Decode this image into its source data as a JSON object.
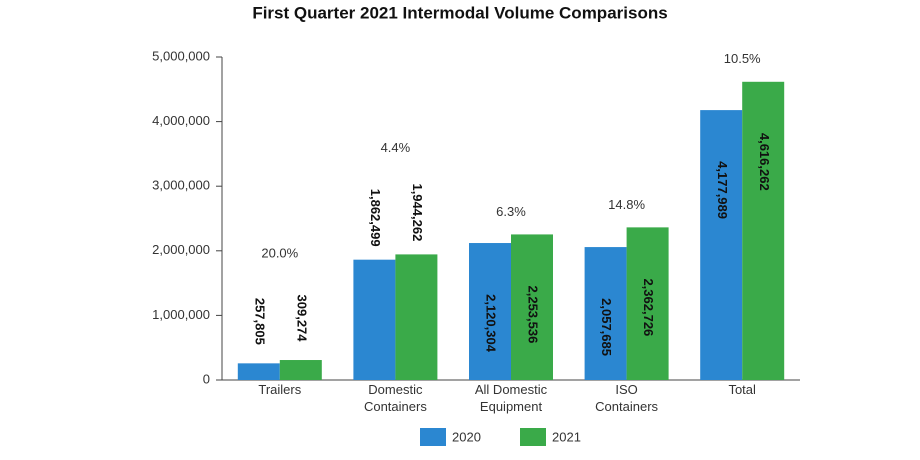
{
  "chart_data": {
    "type": "bar",
    "title": "First Quarter 2021 Intermodal Volume Comparisons",
    "categories": [
      "Trailers",
      "Domestic Containers",
      "All Domestic Equipment",
      "ISO Containers",
      "Total"
    ],
    "series": [
      {
        "name": "2020",
        "color": "#2b87d1",
        "values": [
          257805,
          1862499,
          2120304,
          2057685,
          4177989
        ],
        "value_labels": [
          "257,805",
          "1,862,499",
          "2,120,304",
          "2,057,685",
          "4,177,989"
        ]
      },
      {
        "name": "2021",
        "color": "#3aaa49",
        "values": [
          309274,
          1944262,
          2253536,
          2362726,
          4616262
        ],
        "value_labels": [
          "309,274",
          "1,944,262",
          "2,253,536",
          "2,362,726",
          "4,616,262"
        ]
      }
    ],
    "annotations": [
      "20.0%",
      "4.4%",
      "6.3%",
      "14.8%",
      "10.5%"
    ],
    "ylim": [
      0,
      5000000
    ],
    "yticks": [
      0,
      {
        "value": 1000000,
        "label": "1,000,000"
      },
      {
        "value": 2000000,
        "label": "2,000,000"
      },
      {
        "value": 3000000,
        "label": "3,000,000"
      },
      {
        "value": 4000000,
        "label": "4,000,000"
      },
      {
        "value": 5000000,
        "label": "5,000,000"
      }
    ],
    "grid": false,
    "legend": "bottom"
  }
}
